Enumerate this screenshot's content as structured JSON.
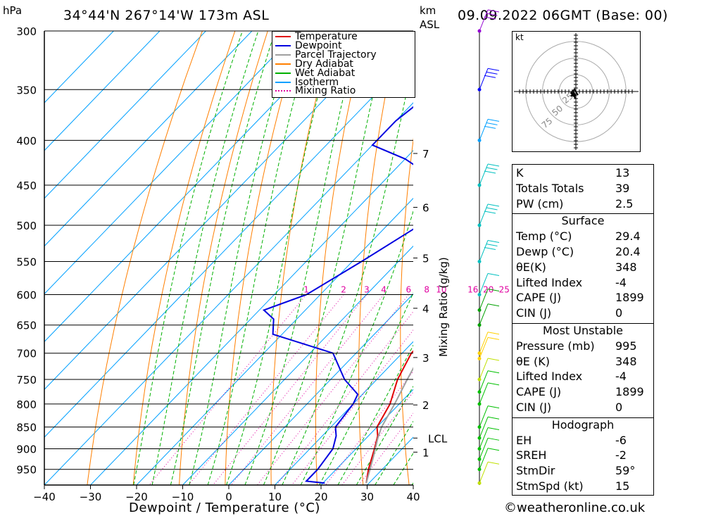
{
  "header": {
    "hpa_label": "hPa",
    "location": "34°44'N 267°14'W 173m ASL",
    "km_label": "km",
    "asl_label": "ASL",
    "datetime": "09.09.2022 06GMT (Base: 00)",
    "kt_label": "kt"
  },
  "legend": {
    "items": [
      {
        "label": "Temperature",
        "color": "#e00000",
        "style": "solid"
      },
      {
        "label": "Dewpoint",
        "color": "#0000e0",
        "style": "solid"
      },
      {
        "label": "Parcel Trajectory",
        "color": "#a0a0a0",
        "style": "solid"
      },
      {
        "label": "Dry Adiabat",
        "color": "#ff7f00",
        "style": "solid"
      },
      {
        "label": "Wet Adiabat",
        "color": "#00b000",
        "style": "solid"
      },
      {
        "label": "Isotherm",
        "color": "#00a0ff",
        "style": "solid"
      },
      {
        "label": "Mixing Ratio",
        "color": "#e000a0",
        "style": "dotted"
      }
    ]
  },
  "chart_data": {
    "type": "line",
    "subtype": "skew-T log-P",
    "xlabel": "Dewpoint / Temperature (°C)",
    "ylabel_right": "Mixing Ratio (g/kg)",
    "x_ticks": [
      -40,
      -30,
      -20,
      -10,
      0,
      10,
      20,
      30,
      40
    ],
    "p_ticks": [
      300,
      350,
      400,
      450,
      500,
      550,
      600,
      650,
      700,
      750,
      800,
      850,
      900,
      950
    ],
    "xlim": [
      -40,
      40
    ],
    "plim": [
      300,
      990
    ],
    "km_ticks": [
      {
        "label": "1",
        "p": 908
      },
      {
        "label": "2",
        "p": 802
      },
      {
        "label": "3",
        "p": 708
      },
      {
        "label": "4",
        "p": 622
      },
      {
        "label": "5",
        "p": 545
      },
      {
        "label": "6",
        "p": 477
      },
      {
        "label": "7",
        "p": 414
      },
      {
        "label": "LCL",
        "p": 875
      }
    ],
    "mixing_ratio_labels": [
      "1",
      "2",
      "3",
      "4",
      "6",
      "8",
      "10",
      "16",
      "20",
      "25"
    ],
    "series": [
      {
        "name": "Temperature",
        "color": "#e00000",
        "points": [
          [
            29.4,
            985
          ],
          [
            27,
            950
          ],
          [
            24,
            900
          ],
          [
            22,
            870
          ],
          [
            20,
            850
          ],
          [
            18,
            800
          ],
          [
            14.5,
            750
          ],
          [
            12,
            700
          ],
          [
            12,
            680
          ],
          [
            11.8,
            650
          ],
          [
            9,
            600
          ],
          [
            5,
            550
          ],
          [
            0.5,
            500
          ],
          [
            -5,
            450
          ],
          [
            -12,
            400
          ],
          [
            -19,
            350
          ],
          [
            -28,
            300
          ]
        ]
      },
      {
        "name": "Dewpoint",
        "color": "#0000e0",
        "points": [
          [
            20.4,
            985
          ],
          [
            16,
            980
          ],
          [
            16,
            950
          ],
          [
            15,
            900
          ],
          [
            13,
            870
          ],
          [
            11,
            850
          ],
          [
            10,
            800
          ],
          [
            9,
            780
          ],
          [
            3,
            750
          ],
          [
            -5,
            700
          ],
          [
            -22,
            666
          ],
          [
            -25,
            640
          ],
          [
            -29,
            625
          ],
          [
            -23,
            600
          ],
          [
            -18,
            550
          ],
          [
            -13,
            500
          ],
          [
            -12,
            470
          ],
          [
            -16,
            450
          ],
          [
            -30,
            420
          ],
          [
            -40,
            405
          ],
          [
            -40,
            380
          ],
          [
            -38,
            350
          ],
          [
            -35,
            300
          ]
        ]
      },
      {
        "name": "Parcel Trajectory",
        "color": "#a0a0a0",
        "points": [
          [
            29.4,
            985
          ],
          [
            25.5,
            920
          ],
          [
            22.5,
            875
          ],
          [
            21,
            850
          ],
          [
            19,
            800
          ],
          [
            16.6,
            750
          ],
          [
            14.2,
            700
          ],
          [
            12.1,
            650
          ],
          [
            10.1,
            600
          ],
          [
            8,
            550
          ],
          [
            5.2,
            500
          ],
          [
            1.6,
            450
          ],
          [
            -3,
            400
          ],
          [
            -9,
            350
          ],
          [
            -16,
            300
          ]
        ]
      }
    ],
    "wind_barb_colors": [
      "#9400d3",
      "#0000ff",
      "#00a0ff",
      "#00c0c0",
      "#00c0c0",
      "#00c0c0",
      "#00c0c0",
      "#00a000",
      "#00a000",
      "#ffd000",
      "#ffd000",
      "#c0e000",
      "#00c000",
      "#00c000",
      "#00c000",
      "#00c000",
      "#00c000",
      "#00c000",
      "#00c000",
      "#c0e000"
    ],
    "hodograph_rings": [
      "25",
      "50",
      "75"
    ]
  },
  "indices": {
    "basic": [
      {
        "key": "K",
        "value": "13"
      },
      {
        "key": "Totals Totals",
        "value": "39"
      },
      {
        "key": "PW (cm)",
        "value": "2.5"
      }
    ],
    "surface_title": "Surface",
    "surface": [
      {
        "key": "Temp (°C)",
        "value": "29.4"
      },
      {
        "key": "Dewp (°C)",
        "value": "20.4"
      },
      {
        "key": "θE(K)",
        "value": "348"
      },
      {
        "key": "Lifted Index",
        "value": "-4"
      },
      {
        "key": "CAPE (J)",
        "value": "1899"
      },
      {
        "key": "CIN (J)",
        "value": "0"
      }
    ],
    "mu_title": "Most Unstable",
    "most_unstable": [
      {
        "key": "Pressure (mb)",
        "value": "995"
      },
      {
        "key": "θE (K)",
        "value": "348"
      },
      {
        "key": "Lifted Index",
        "value": "-4"
      },
      {
        "key": "CAPE (J)",
        "value": "1899"
      },
      {
        "key": "CIN (J)",
        "value": "0"
      }
    ],
    "hodo_title": "Hodograph",
    "hodograph": [
      {
        "key": "EH",
        "value": "-6"
      },
      {
        "key": "SREH",
        "value": "-2"
      },
      {
        "key": "StmDir",
        "value": "59°"
      },
      {
        "key": "StmSpd (kt)",
        "value": "15"
      }
    ]
  },
  "footer": {
    "copyright": "©weatheronline.co.uk"
  }
}
